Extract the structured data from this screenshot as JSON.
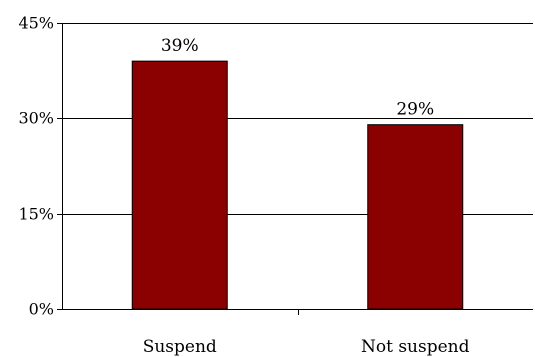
{
  "chart_data": {
    "type": "bar",
    "categories": [
      "Suspend",
      "Not suspend"
    ],
    "values": [
      39,
      29
    ],
    "data_labels": [
      "39%",
      "29%"
    ],
    "title": "",
    "xlabel": "",
    "ylabel": "",
    "ylim": [
      0,
      45
    ],
    "yticks": [
      0,
      15,
      30,
      45
    ],
    "ytick_labels": [
      "0%",
      "15%",
      "30%",
      "45%"
    ],
    "grid": true,
    "bar_color": "#8B0000"
  }
}
